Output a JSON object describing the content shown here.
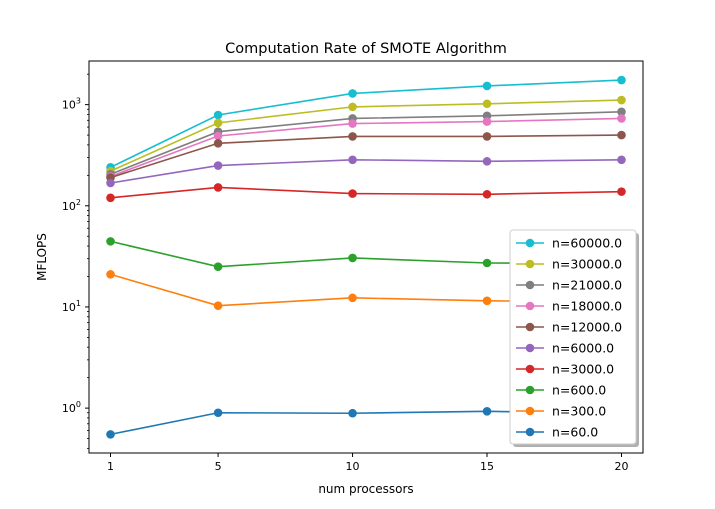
{
  "chart_data": {
    "type": "line",
    "title": "Computation Rate of SMOTE Algorithm",
    "xlabel": "num processors",
    "ylabel": "MFLOPS",
    "yscale": "log",
    "x": [
      1,
      5,
      10,
      15,
      20
    ],
    "xlim": [
      0.2,
      20.8
    ],
    "ylim": [
      0.36,
      2700
    ],
    "xticks": [
      "1",
      "5",
      "10",
      "15",
      "20"
    ],
    "yticks": [
      {
        "value": 1,
        "base": "10",
        "exp": "0"
      },
      {
        "value": 10,
        "base": "10",
        "exp": "1"
      },
      {
        "value": 100,
        "base": "10",
        "exp": "2"
      },
      {
        "value": 1000,
        "base": "10",
        "exp": "3"
      }
    ],
    "grid": false,
    "legend": "lower-right",
    "series": [
      {
        "name": "n=60000.0",
        "color": "#17becf",
        "values": [
          240,
          790,
          1290,
          1530,
          1750
        ]
      },
      {
        "name": "n=30000.0",
        "color": "#bcbd22",
        "values": [
          220,
          660,
          950,
          1020,
          1110
        ]
      },
      {
        "name": "n=21000.0",
        "color": "#7f7f7f",
        "values": [
          205,
          540,
          730,
          775,
          850
        ]
      },
      {
        "name": "n=18000.0",
        "color": "#e377c2",
        "values": [
          195,
          490,
          650,
          680,
          730
        ]
      },
      {
        "name": "n=12000.0",
        "color": "#8c564b",
        "values": [
          190,
          415,
          485,
          485,
          500
        ]
      },
      {
        "name": "n=6000.0",
        "color": "#9467bd",
        "values": [
          168,
          250,
          285,
          275,
          285
        ]
      },
      {
        "name": "n=3000.0",
        "color": "#d62728",
        "values": [
          120,
          152,
          132,
          130,
          138
        ]
      },
      {
        "name": "n=600.0",
        "color": "#2ca02c",
        "values": [
          44.5,
          25,
          30.5,
          27.2,
          27
        ]
      },
      {
        "name": "n=300.0",
        "color": "#ff7f0e",
        "values": [
          21,
          10.3,
          12.3,
          11.5,
          11.2
        ]
      },
      {
        "name": "n=60.0",
        "color": "#1f77b4",
        "values": [
          0.55,
          0.9,
          0.89,
          0.93,
          0.88
        ]
      }
    ]
  }
}
